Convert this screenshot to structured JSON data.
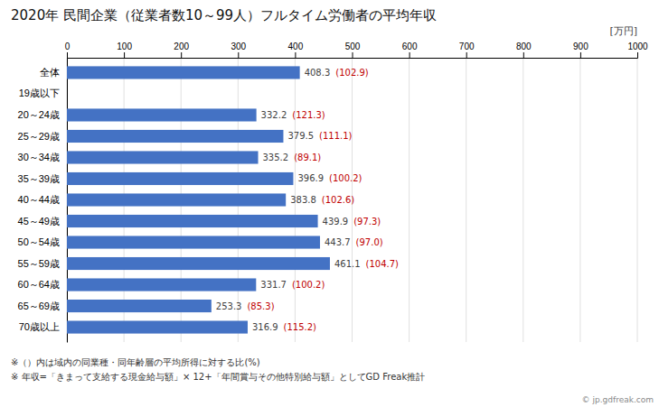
{
  "chart_data": {
    "type": "bar",
    "orientation": "horizontal",
    "title": "2020年 民間企業（従業者数10～99人）フルタイム労働者の平均年収",
    "xlabel": "[万円]",
    "categories": [
      "全体",
      "19歳以下",
      "20～24歳",
      "25～29歳",
      "30～34歳",
      "35～39歳",
      "40～44歳",
      "45～49歳",
      "50～54歳",
      "55～59歳",
      "60～64歳",
      "65～69歳",
      "70歳以上"
    ],
    "values": [
      408.3,
      0,
      332.2,
      379.5,
      335.2,
      396.9,
      383.8,
      439.9,
      443.7,
      461.1,
      331.7,
      253.3,
      316.9
    ],
    "color": "#4472c4",
    "data_labels": true,
    "ratio_labels": {
      "color": "#c00000",
      "labels": [
        "(102.9)",
        null,
        "(121.3)",
        "(111.1)",
        "(89.1)",
        "(100.2)",
        "(102.6)",
        "(97.3)",
        "(97.0)",
        "(104.7)",
        "(100.2)",
        "(85.3)",
        "(115.2)"
      ]
    },
    "xlim": [
      0,
      1000
    ],
    "xticks": [
      0,
      100,
      200,
      300,
      400,
      500,
      600,
      700,
      800,
      900,
      1000
    ],
    "grid": true,
    "notes": [
      "※（）内は域内の同業種・同年齢層の平均所得に対する比(%)",
      "※ 年収=「きまって支給する現金給与額」× 12+「年間賞与その他特別給与額」としてGD Freak推計"
    ],
    "source": "© jp.gdfreak.com"
  }
}
